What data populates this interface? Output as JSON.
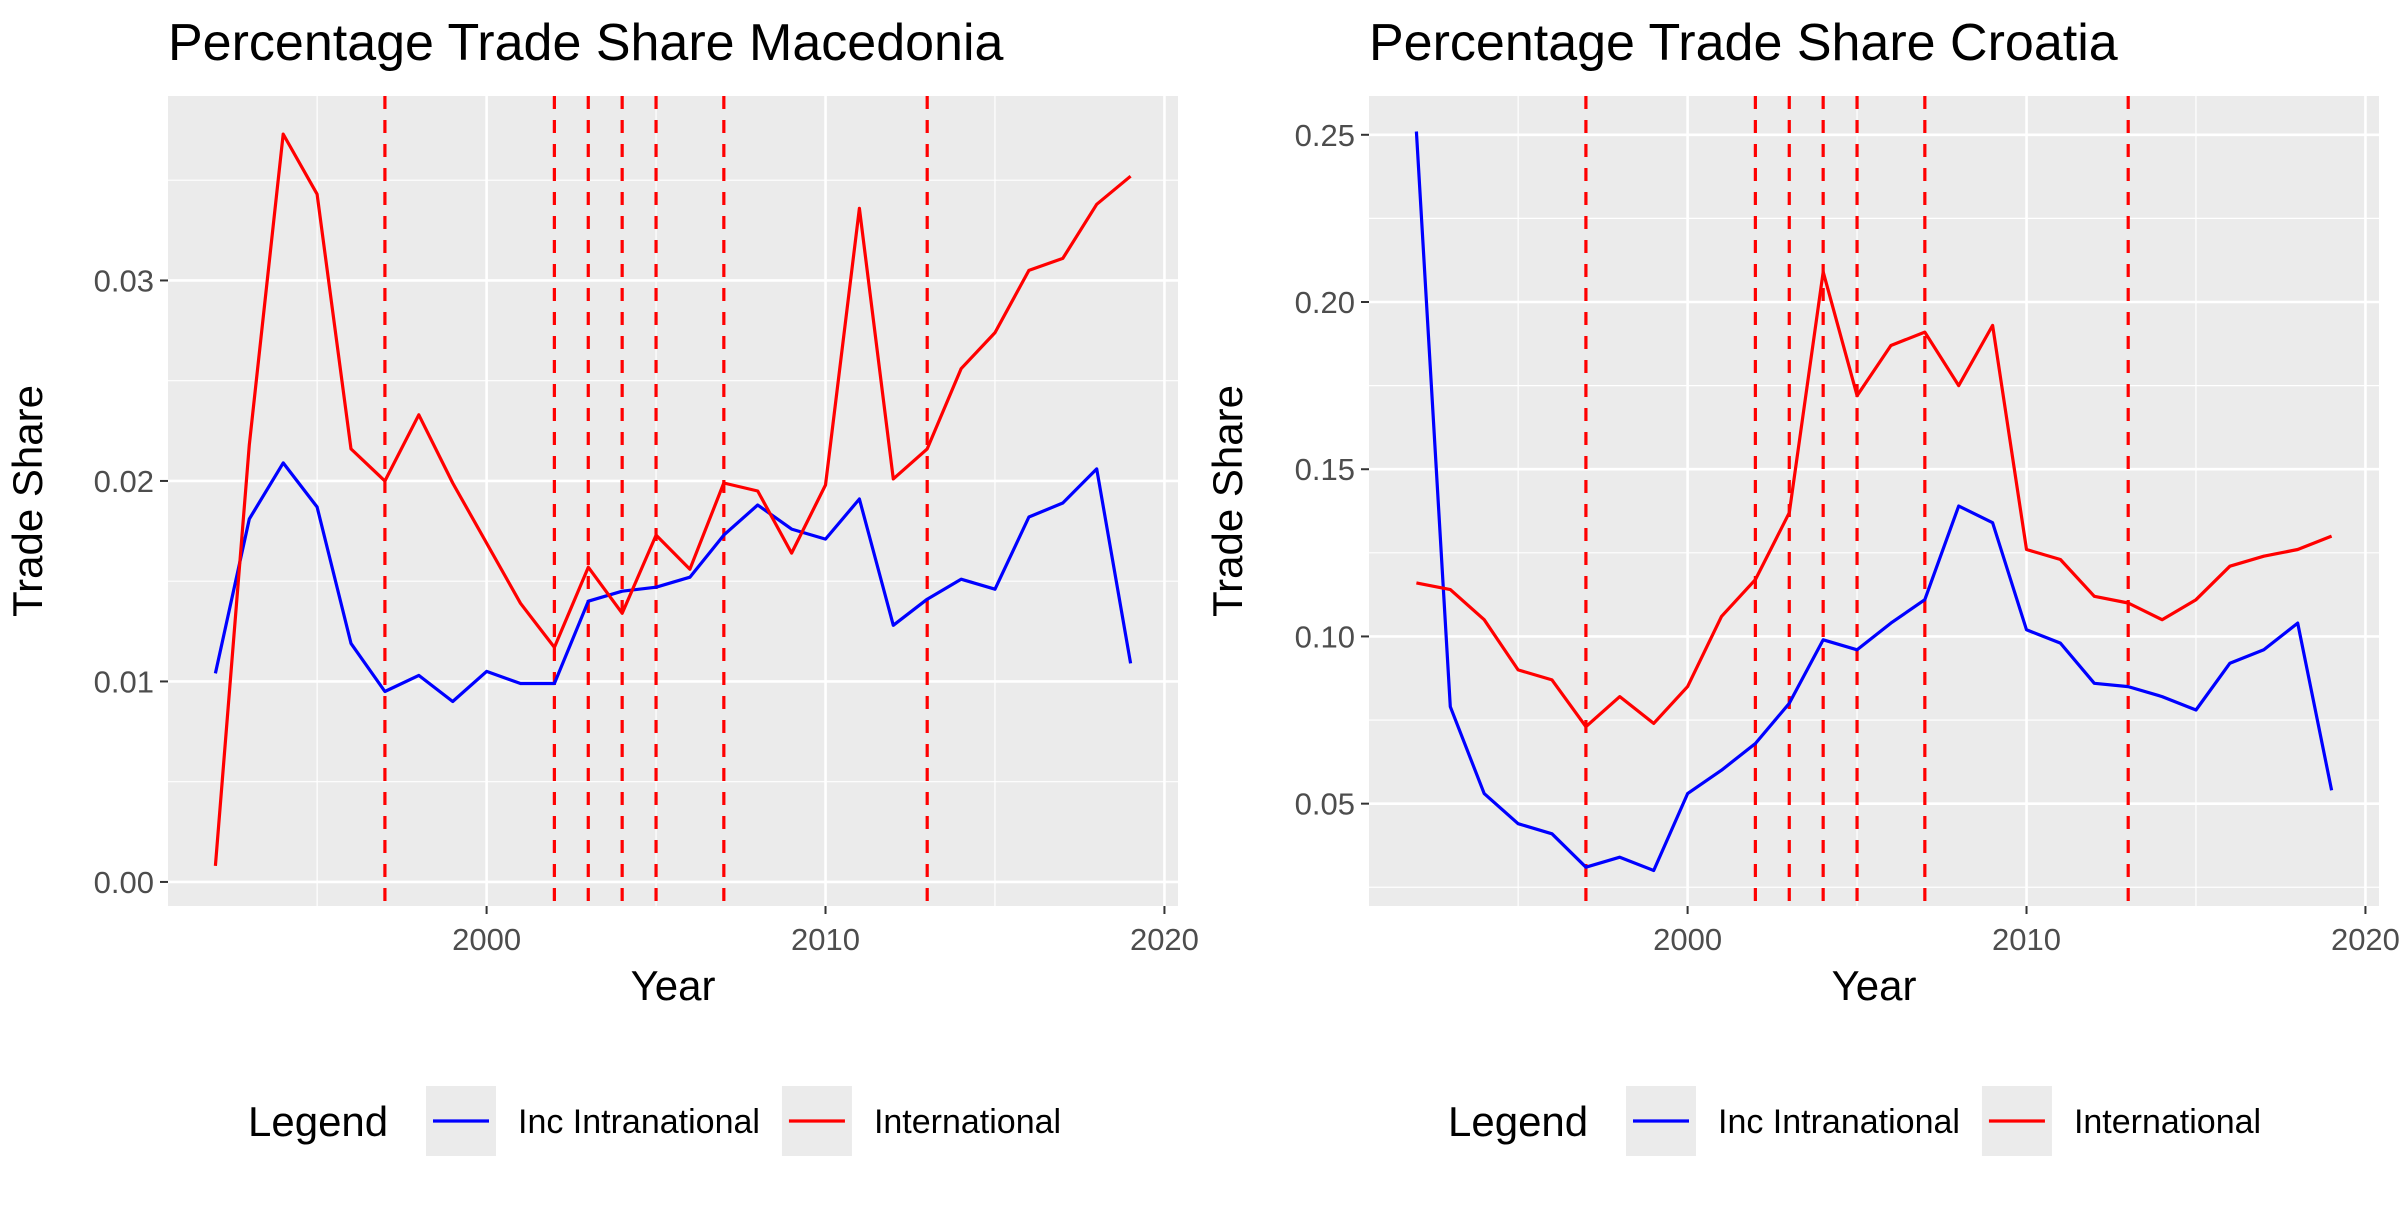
{
  "chart_data": [
    {
      "type": "line",
      "title": "Percentage Trade Share  Macedonia",
      "xlabel": "Year",
      "ylabel": "Trade Share",
      "xlim": [
        1990.6,
        2020.4
      ],
      "ylim": [
        -0.0012,
        0.0392
      ],
      "x_ticks": [
        2000,
        2010,
        2020
      ],
      "x_tick_labels": [
        "2000",
        "2010",
        "2020"
      ],
      "y_ticks": [
        0.0,
        0.01,
        0.02,
        0.03
      ],
      "y_tick_labels": [
        "0.00",
        "0.01",
        "0.02",
        "0.03"
      ],
      "grid": true,
      "vlines": {
        "color": "#ff0000",
        "style": "dashed",
        "x": [
          1997,
          2002,
          2003,
          2004,
          2005,
          2007,
          2013
        ]
      },
      "legend": {
        "title": "Legend",
        "position": "bottom"
      },
      "x": [
        1992,
        1993,
        1994,
        1995,
        1996,
        1997,
        1998,
        1999,
        2000,
        2001,
        2002,
        2003,
        2004,
        2005,
        2006,
        2007,
        2008,
        2009,
        2010,
        2011,
        2012,
        2013,
        2014,
        2015,
        2016,
        2017,
        2018,
        2019
      ],
      "series": [
        {
          "name": "Inc Intranational",
          "color": "#0000ff",
          "values": [
            0.0104,
            0.0181,
            0.0209,
            0.0187,
            0.0119,
            0.0095,
            0.0103,
            0.009,
            0.0105,
            0.0099,
            0.0099,
            0.014,
            0.0145,
            0.0147,
            0.0152,
            0.0173,
            0.0188,
            0.0176,
            0.0171,
            0.0191,
            0.0128,
            0.0141,
            0.0151,
            0.0146,
            0.0182,
            0.0189,
            0.0206,
            0.0109
          ]
        },
        {
          "name": "International",
          "color": "#ff0000",
          "values": [
            0.0008,
            0.0218,
            0.0373,
            0.0343,
            0.0216,
            0.02,
            0.0233,
            0.0199,
            0.0169,
            0.0139,
            0.0117,
            0.0157,
            0.0134,
            0.0173,
            0.0156,
            0.0199,
            0.0195,
            0.0164,
            0.0198,
            0.0336,
            0.0201,
            0.0216,
            0.0256,
            0.0274,
            0.0305,
            0.0311,
            0.0338,
            0.0352
          ]
        }
      ]
    },
    {
      "type": "line",
      "title": "Percentage Trade Share  Croatia",
      "xlabel": "Year",
      "ylabel": "Trade Share",
      "xlim": [
        1990.6,
        2020.4
      ],
      "ylim": [
        0.0194,
        0.2616
      ],
      "x_ticks": [
        2000,
        2010,
        2020
      ],
      "x_tick_labels": [
        "2000",
        "2010",
        "2020"
      ],
      "y_ticks": [
        0.05,
        0.1,
        0.15,
        0.2,
        0.25
      ],
      "y_tick_labels": [
        "0.05",
        "0.10",
        "0.15",
        "0.20",
        "0.25"
      ],
      "grid": true,
      "vlines": {
        "color": "#ff0000",
        "style": "dashed",
        "x": [
          1997,
          2002,
          2003,
          2004,
          2005,
          2007,
          2013
        ]
      },
      "legend": {
        "title": "Legend",
        "position": "bottom"
      },
      "x": [
        1992,
        1993,
        1994,
        1995,
        1996,
        1997,
        1998,
        1999,
        2000,
        2001,
        2002,
        2003,
        2004,
        2005,
        2006,
        2007,
        2008,
        2009,
        2010,
        2011,
        2012,
        2013,
        2014,
        2015,
        2016,
        2017,
        2018,
        2019
      ],
      "series": [
        {
          "name": "Inc Intranational",
          "color": "#0000ff",
          "values": [
            0.251,
            0.079,
            0.053,
            0.044,
            0.041,
            0.031,
            0.034,
            0.03,
            0.053,
            0.06,
            0.068,
            0.08,
            0.099,
            0.096,
            0.104,
            0.111,
            0.139,
            0.134,
            0.102,
            0.098,
            0.086,
            0.085,
            0.082,
            0.078,
            0.092,
            0.096,
            0.104,
            0.054
          ]
        },
        {
          "name": "International",
          "color": "#ff0000",
          "values": [
            0.116,
            0.114,
            0.105,
            0.09,
            0.087,
            0.073,
            0.082,
            0.074,
            0.085,
            0.106,
            0.117,
            0.137,
            0.209,
            0.172,
            0.187,
            0.191,
            0.175,
            0.193,
            0.126,
            0.123,
            0.112,
            0.11,
            0.105,
            0.111,
            0.121,
            0.124,
            0.126,
            0.13
          ]
        }
      ]
    }
  ]
}
